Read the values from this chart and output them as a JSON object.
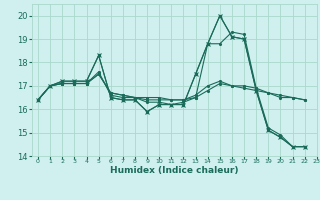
{
  "xlabel": "Humidex (Indice chaleur)",
  "ylabel": "",
  "bg_color": "#cff0ee",
  "grid_color": "#aad8cc",
  "line_color": "#1a6b5a",
  "xlim": [
    -0.5,
    23
  ],
  "ylim": [
    14,
    20.5
  ],
  "yticks": [
    14,
    15,
    16,
    17,
    18,
    19,
    20
  ],
  "xticks": [
    0,
    1,
    2,
    3,
    4,
    5,
    6,
    7,
    8,
    9,
    10,
    11,
    12,
    13,
    14,
    15,
    16,
    17,
    18,
    19,
    20,
    21,
    22,
    23
  ],
  "series": [
    [
      16.4,
      17.0,
      17.2,
      17.2,
      17.2,
      18.3,
      16.5,
      16.4,
      16.4,
      15.9,
      16.2,
      16.2,
      16.2,
      17.5,
      18.8,
      20.0,
      19.1,
      19.0,
      16.8,
      15.1,
      14.8,
      14.4,
      14.4
    ],
    [
      16.4,
      17.0,
      17.1,
      17.1,
      17.1,
      17.6,
      16.6,
      16.5,
      16.5,
      16.3,
      16.3,
      16.2,
      16.3,
      16.5,
      18.8,
      18.8,
      19.3,
      19.2,
      16.9,
      15.2,
      14.9,
      14.4,
      14.4
    ],
    [
      16.4,
      17.0,
      17.1,
      17.1,
      17.1,
      17.5,
      16.7,
      16.6,
      16.5,
      16.5,
      16.5,
      16.4,
      16.4,
      16.6,
      17.0,
      17.2,
      17.0,
      17.0,
      16.9,
      16.7,
      16.6,
      16.5,
      16.4
    ],
    [
      16.4,
      17.0,
      17.1,
      17.1,
      17.1,
      17.5,
      16.7,
      16.6,
      16.5,
      16.4,
      16.4,
      16.4,
      16.4,
      16.5,
      16.8,
      17.1,
      17.0,
      16.9,
      16.8,
      16.7,
      16.5,
      16.5,
      16.4
    ]
  ]
}
